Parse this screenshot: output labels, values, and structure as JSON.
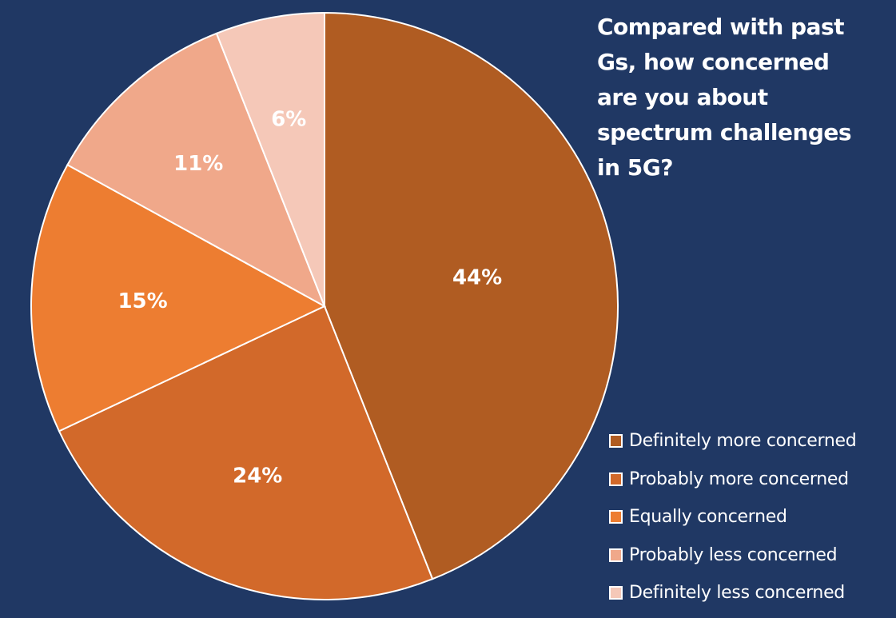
{
  "chart_data": {
    "type": "pie",
    "title": "Compared with past Gs, how concerned are you about spectrum challenges in 5G?",
    "categories": [
      "Definitely more concerned",
      "Probably more concerned",
      "Equally concerned",
      "Probably less concerned",
      "Definitely less concerned"
    ],
    "values": [
      44,
      24,
      15,
      11,
      6
    ],
    "labels": [
      "44%",
      "24%",
      "15%",
      "11%",
      "6%"
    ],
    "colors": [
      "#B05C22",
      "#D2692A",
      "#ED7D31",
      "#F0A88A",
      "#F5C8B8"
    ],
    "legend_position": "bottom-right",
    "start_angle": "12 o'clock, clockwise"
  }
}
